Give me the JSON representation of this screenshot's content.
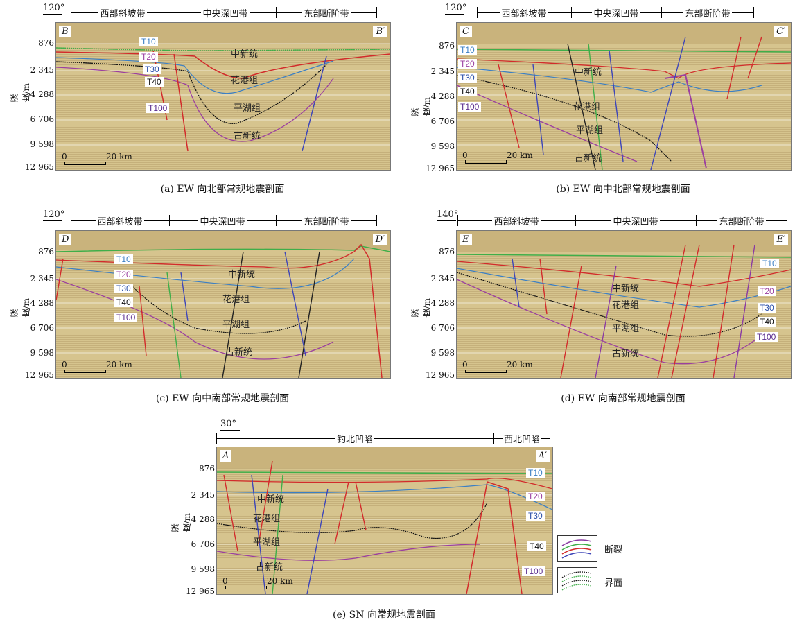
{
  "depth_ticks": [
    "876",
    "2 345",
    "4 288",
    "6 706",
    "9 598",
    "12 965"
  ],
  "depth_label": "深度/m",
  "scale_label": "20 km",
  "scale_zero": "0",
  "horizons": {
    "t10": "T10",
    "t20": "T20",
    "t30": "T30",
    "t40": "T40",
    "t100": "T100"
  },
  "units": {
    "miocene": "中新统",
    "huagang": "花港组",
    "pinghu": "平湖组",
    "paleogene": "古新统"
  },
  "colors": {
    "t10": "#3b7fc4",
    "t20": "#9b3fa0",
    "t30": "#2a4fa8",
    "t40": "#111111",
    "t100": "#5b2d8e",
    "fault_red": "#d22b2b",
    "fault_blue": "#3d45b8",
    "fault_green": "#3fae49",
    "fault_purple": "#8a3aa3",
    "fault_black": "#222222"
  },
  "panels": {
    "a": {
      "azimuth": "120°",
      "left_label": "B",
      "right_label": "B′",
      "zones": [
        "西部斜坡带",
        "中央深凹带",
        "东部断阶带"
      ],
      "caption": "(a) EW 向北部常规地震剖面"
    },
    "b": {
      "azimuth": "120°",
      "left_label": "C",
      "right_label": "C′",
      "zones": [
        "西部斜坡带",
        "中央深凹带",
        "东部断阶带"
      ],
      "caption": "(b) EW 向中北部常规地震剖面"
    },
    "c": {
      "azimuth": "120°",
      "left_label": "D",
      "right_label": "D′",
      "zones": [
        "西部斜坡带",
        "中央深凹带",
        "东部断阶带"
      ],
      "caption": "(c) EW 向中南部常规地震剖面"
    },
    "d": {
      "azimuth": "140°",
      "left_label": "E",
      "right_label": "E′",
      "zones": [
        "西部斜坡带",
        "中央深凹带",
        "东部断阶带"
      ],
      "caption": "(d) EW 向南部常规地震剖面"
    },
    "e": {
      "azimuth": "30°",
      "left_label": "A",
      "right_label": "A′",
      "zones": [
        "钓北凹陷",
        "西北凹陷"
      ],
      "caption": "(e) SN 向常规地震剖面"
    }
  },
  "legend": {
    "fault": "断裂",
    "interface": "界面"
  }
}
